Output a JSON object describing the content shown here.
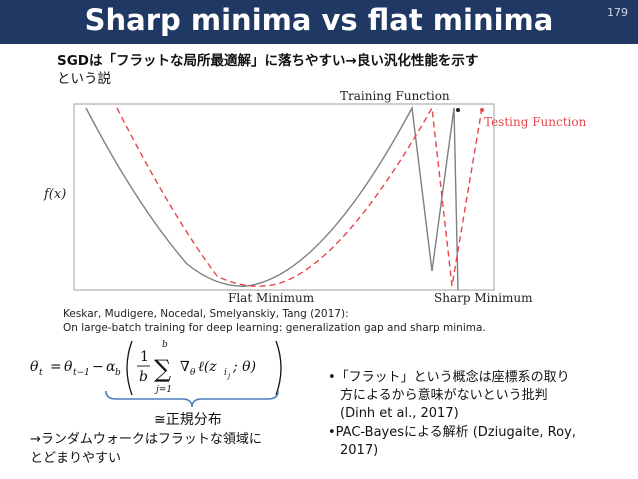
{
  "slide": {
    "title": "Sharp minima vs flat minima",
    "page_number": "179"
  },
  "intro": {
    "line1": "SGDは「フラットな局所最適解」に落ちやすい→良い汎化性能を示す",
    "line2": "という説"
  },
  "figure": {
    "ylabel": "f(x)",
    "training_label": "Training Function",
    "testing_label": "Testing Function",
    "flat_label": "Flat Minimum",
    "sharp_label": "Sharp Minimum",
    "colors": {
      "training": "#7f7f7f",
      "testing": "#e8464b"
    }
  },
  "reference": {
    "line1": "Keskar, Mudigere, Nocedal, Smelyanskiy, Tang (2017):",
    "line2": "On large-batch training for deep learning: generalization gap and sharp minima."
  },
  "equation": {
    "lhs": "θ",
    "t_sub": "t",
    "tm1_sub": "t−1",
    "alpha": "α",
    "b_sub": "b",
    "sum_top": "b",
    "sum_bottom": "j=1",
    "frac_num": "1",
    "frac_den": "b",
    "grad_term": "∇",
    "theta_sub": "θ",
    "ell": "ℓ(z",
    "ij": "i",
    "j_sub": "j",
    "semicolon_theta": "; θ)"
  },
  "annotation": {
    "normal": "≅正規分布",
    "arrow_line1": "→ランダムウォークはフラットな領域に",
    "arrow_line2": "とどまりやすい"
  },
  "bullets": [
    {
      "line1": "•「フラット」という概念は座標系の取り",
      "line2": "方によるから意味がないという批判",
      "line3": "(Dinh et al., 2017)"
    },
    {
      "line1": "•PAC-Bayesによる解析 (Dziugaite, Roy,",
      "line2": "2017)"
    }
  ]
}
